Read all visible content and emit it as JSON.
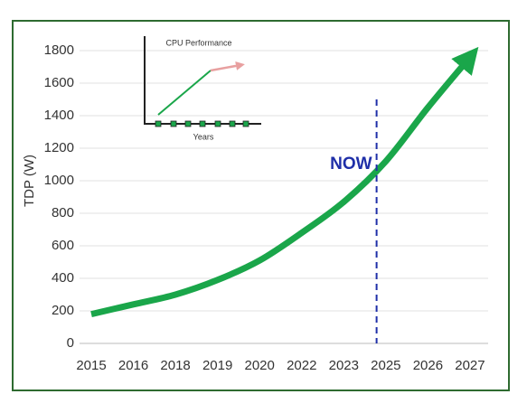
{
  "chart_data": {
    "type": "line",
    "y_label": "TDP (W)",
    "categories": [
      "2015",
      "2016",
      "2018",
      "2019",
      "2020",
      "2022",
      "2023",
      "2025",
      "2026",
      "2027"
    ],
    "values": [
      180,
      240,
      300,
      390,
      510,
      680,
      870,
      1120,
      1450,
      1760
    ],
    "color": "#1aa64a",
    "ylim": [
      0,
      1800
    ],
    "yticks": [
      0,
      200,
      400,
      600,
      800,
      1000,
      1200,
      1400,
      1600,
      1800
    ],
    "grid": true,
    "annotation": "NOW",
    "inset": {
      "title": "CPU Performance",
      "x_label": "Years"
    }
  }
}
